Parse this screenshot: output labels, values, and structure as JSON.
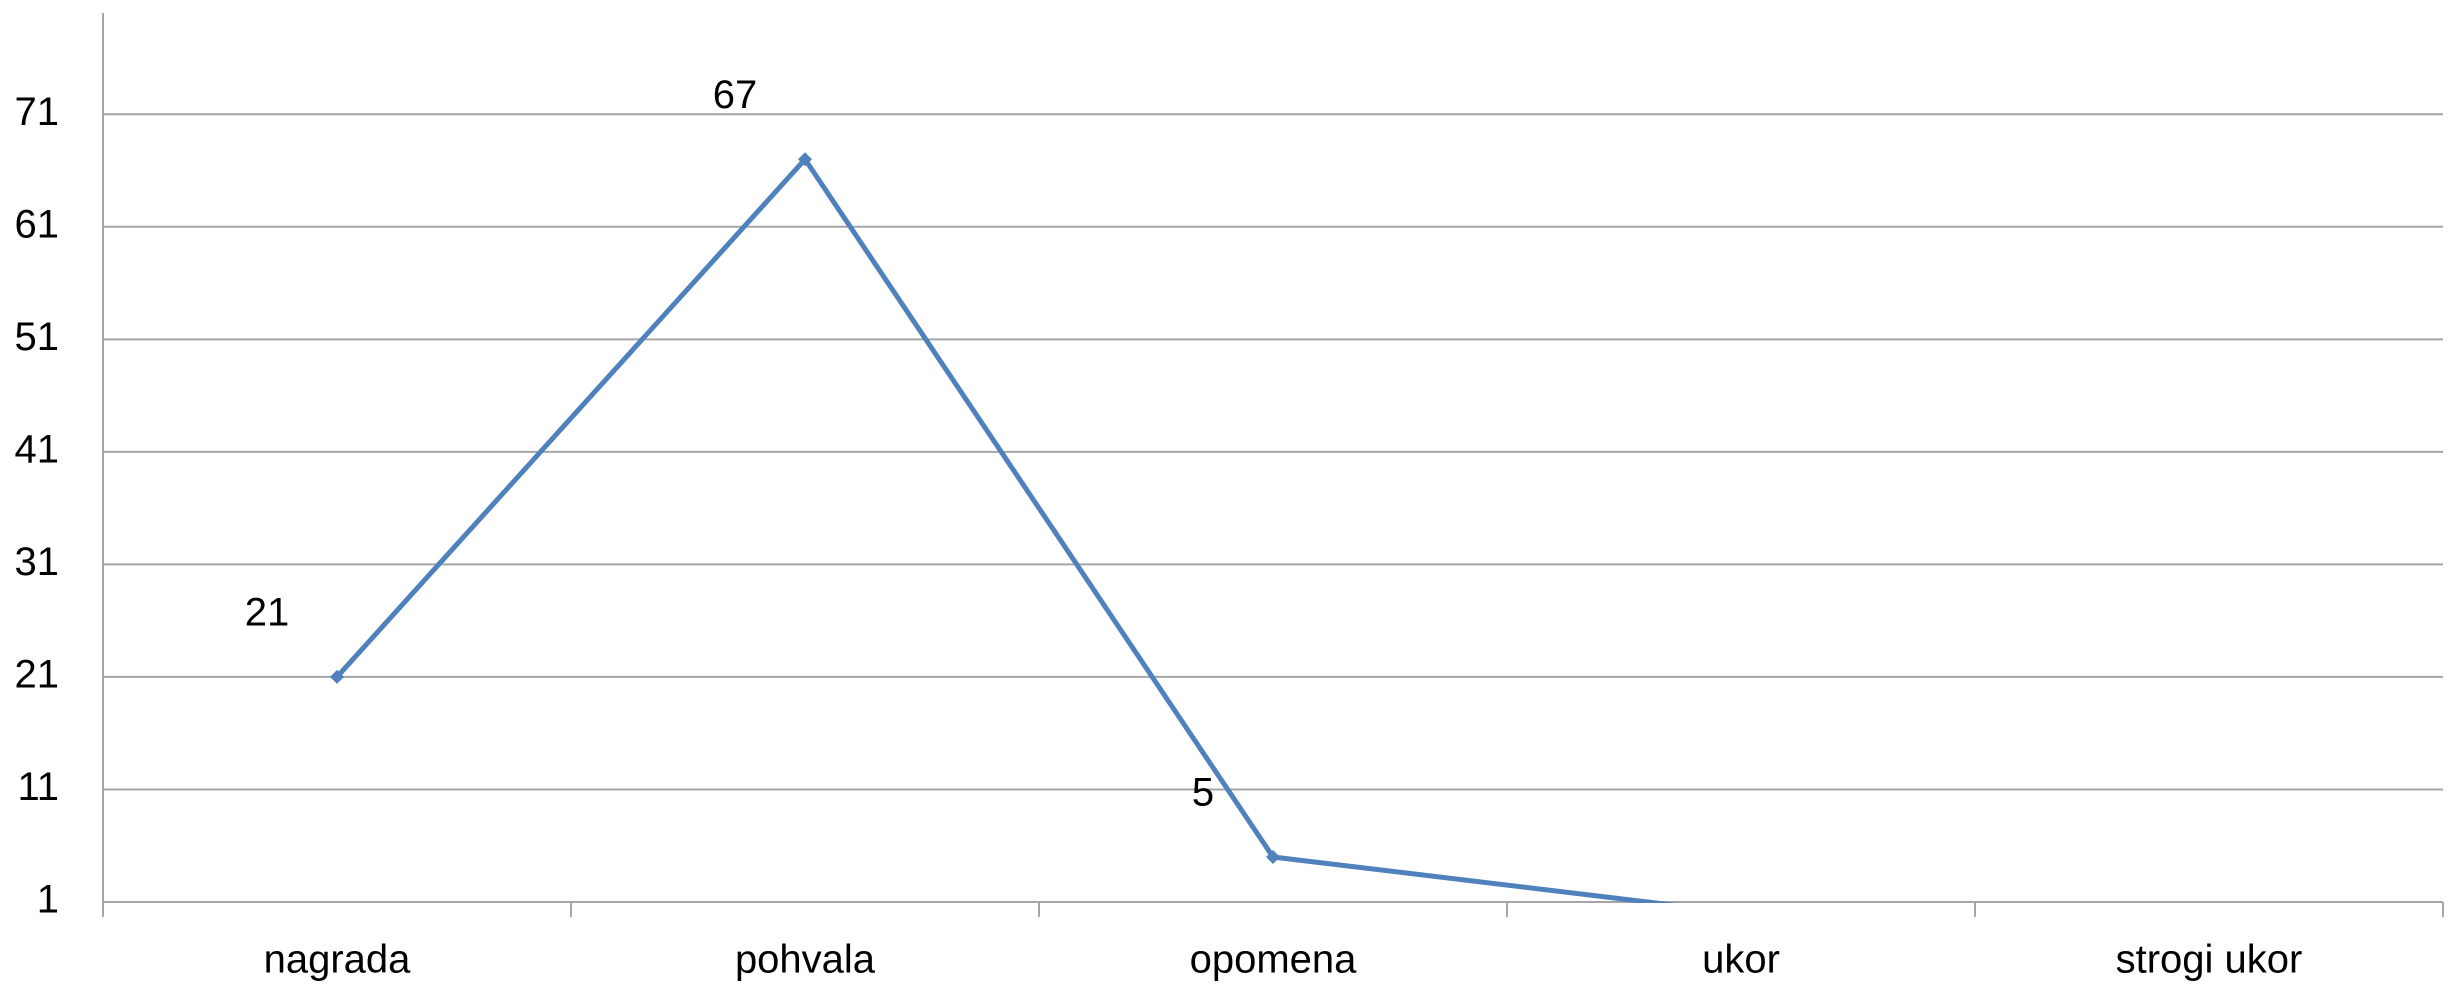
{
  "chart_data": {
    "type": "line",
    "categories": [
      "nagrada",
      "pohvala",
      "opomena",
      "ukor",
      "strogi ukor"
    ],
    "series": [
      {
        "color": "#4f81bd",
        "values": [
          21,
          67,
          5,
          0,
          null
        ]
      }
    ],
    "ylim": [
      1,
      80
    ],
    "yticks": [
      1,
      11,
      21,
      31,
      41,
      51,
      61,
      71
    ],
    "grid": true
  }
}
